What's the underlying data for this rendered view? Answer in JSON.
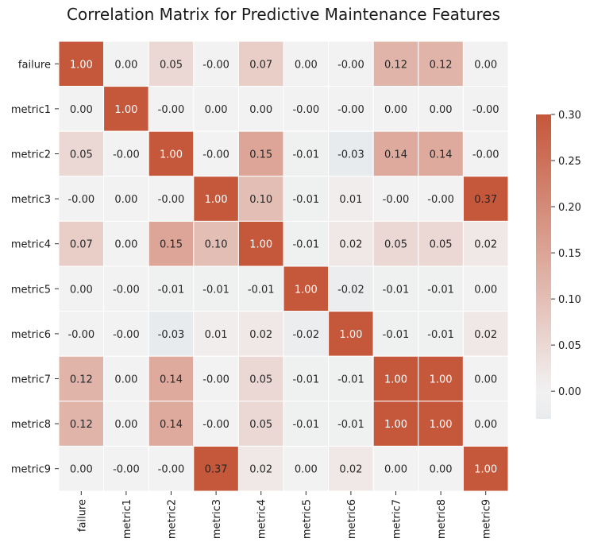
{
  "chart_data": {
    "type": "heatmap",
    "title": "Correlation Matrix for Predictive Maintenance Features",
    "rows": [
      "failure",
      "metric1",
      "metric2",
      "metric3",
      "metric4",
      "metric5",
      "metric6",
      "metric7",
      "metric8",
      "metric9"
    ],
    "columns": [
      "failure",
      "metric1",
      "metric2",
      "metric3",
      "metric4",
      "metric5",
      "metric6",
      "metric7",
      "metric8",
      "metric9"
    ],
    "values": [
      [
        1.0,
        0.0,
        0.05,
        -0.0,
        0.07,
        0.0,
        -0.0,
        0.12,
        0.12,
        0.0
      ],
      [
        0.0,
        1.0,
        -0.0,
        0.0,
        0.0,
        -0.0,
        -0.0,
        0.0,
        0.0,
        -0.0
      ],
      [
        0.05,
        -0.0,
        1.0,
        -0.0,
        0.15,
        -0.01,
        -0.03,
        0.14,
        0.14,
        -0.0
      ],
      [
        -0.0,
        0.0,
        -0.0,
        1.0,
        0.1,
        -0.01,
        0.01,
        -0.0,
        -0.0,
        0.37
      ],
      [
        0.07,
        0.0,
        0.15,
        0.1,
        1.0,
        -0.01,
        0.02,
        0.05,
        0.05,
        0.02
      ],
      [
        0.0,
        -0.0,
        -0.01,
        -0.01,
        -0.01,
        1.0,
        -0.02,
        -0.01,
        -0.01,
        0.0
      ],
      [
        -0.0,
        -0.0,
        -0.03,
        0.01,
        0.02,
        -0.02,
        1.0,
        -0.01,
        -0.01,
        0.02
      ],
      [
        0.12,
        0.0,
        0.14,
        -0.0,
        0.05,
        -0.01,
        -0.01,
        1.0,
        1.0,
        0.0
      ],
      [
        0.12,
        0.0,
        0.14,
        -0.0,
        0.05,
        -0.01,
        -0.01,
        1.0,
        1.0,
        0.0
      ],
      [
        0.0,
        -0.0,
        -0.0,
        0.37,
        0.02,
        0.0,
        0.02,
        0.0,
        0.0,
        1.0
      ]
    ],
    "cell_labels": [
      [
        "1.00",
        "0.00",
        "0.05",
        "-0.00",
        "0.07",
        "0.00",
        "-0.00",
        "0.12",
        "0.12",
        "0.00"
      ],
      [
        "0.00",
        "1.00",
        "-0.00",
        "0.00",
        "0.00",
        "-0.00",
        "-0.00",
        "0.00",
        "0.00",
        "-0.00"
      ],
      [
        "0.05",
        "-0.00",
        "1.00",
        "-0.00",
        "0.15",
        "-0.01",
        "-0.03",
        "0.14",
        "0.14",
        "-0.00"
      ],
      [
        "-0.00",
        "0.00",
        "-0.00",
        "1.00",
        "0.10",
        "-0.01",
        "0.01",
        "-0.00",
        "-0.00",
        "0.37"
      ],
      [
        "0.07",
        "0.00",
        "0.15",
        "0.10",
        "1.00",
        "-0.01",
        "0.02",
        "0.05",
        "0.05",
        "0.02"
      ],
      [
        "0.00",
        "-0.00",
        "-0.01",
        "-0.01",
        "-0.01",
        "1.00",
        "-0.02",
        "-0.01",
        "-0.01",
        "0.00"
      ],
      [
        "-0.00",
        "-0.00",
        "-0.03",
        "0.01",
        "0.02",
        "-0.02",
        "1.00",
        "-0.01",
        "-0.01",
        "0.02"
      ],
      [
        "0.12",
        "0.00",
        "0.14",
        "-0.00",
        "0.05",
        "-0.01",
        "-0.01",
        "1.00",
        "1.00",
        "0.00"
      ],
      [
        "0.12",
        "0.00",
        "0.14",
        "-0.00",
        "0.05",
        "-0.01",
        "-0.01",
        "1.00",
        "1.00",
        "0.00"
      ],
      [
        "0.00",
        "-0.00",
        "-0.00",
        "0.37",
        "0.02",
        "0.00",
        "0.02",
        "0.00",
        "0.00",
        "1.00"
      ]
    ],
    "colorbar": {
      "min": -0.03,
      "max": 0.3,
      "ticks": [
        0.0,
        0.05,
        0.1,
        0.15,
        0.2,
        0.25,
        0.3
      ],
      "tick_labels": [
        "0.00",
        "0.05",
        "0.10",
        "0.15",
        "0.20",
        "0.25",
        "0.30"
      ],
      "low_color": "#e8ebed",
      "neutral_color": "#f2f2f2",
      "high_color": "#c5573b",
      "placement": "right"
    },
    "grid": true
  }
}
